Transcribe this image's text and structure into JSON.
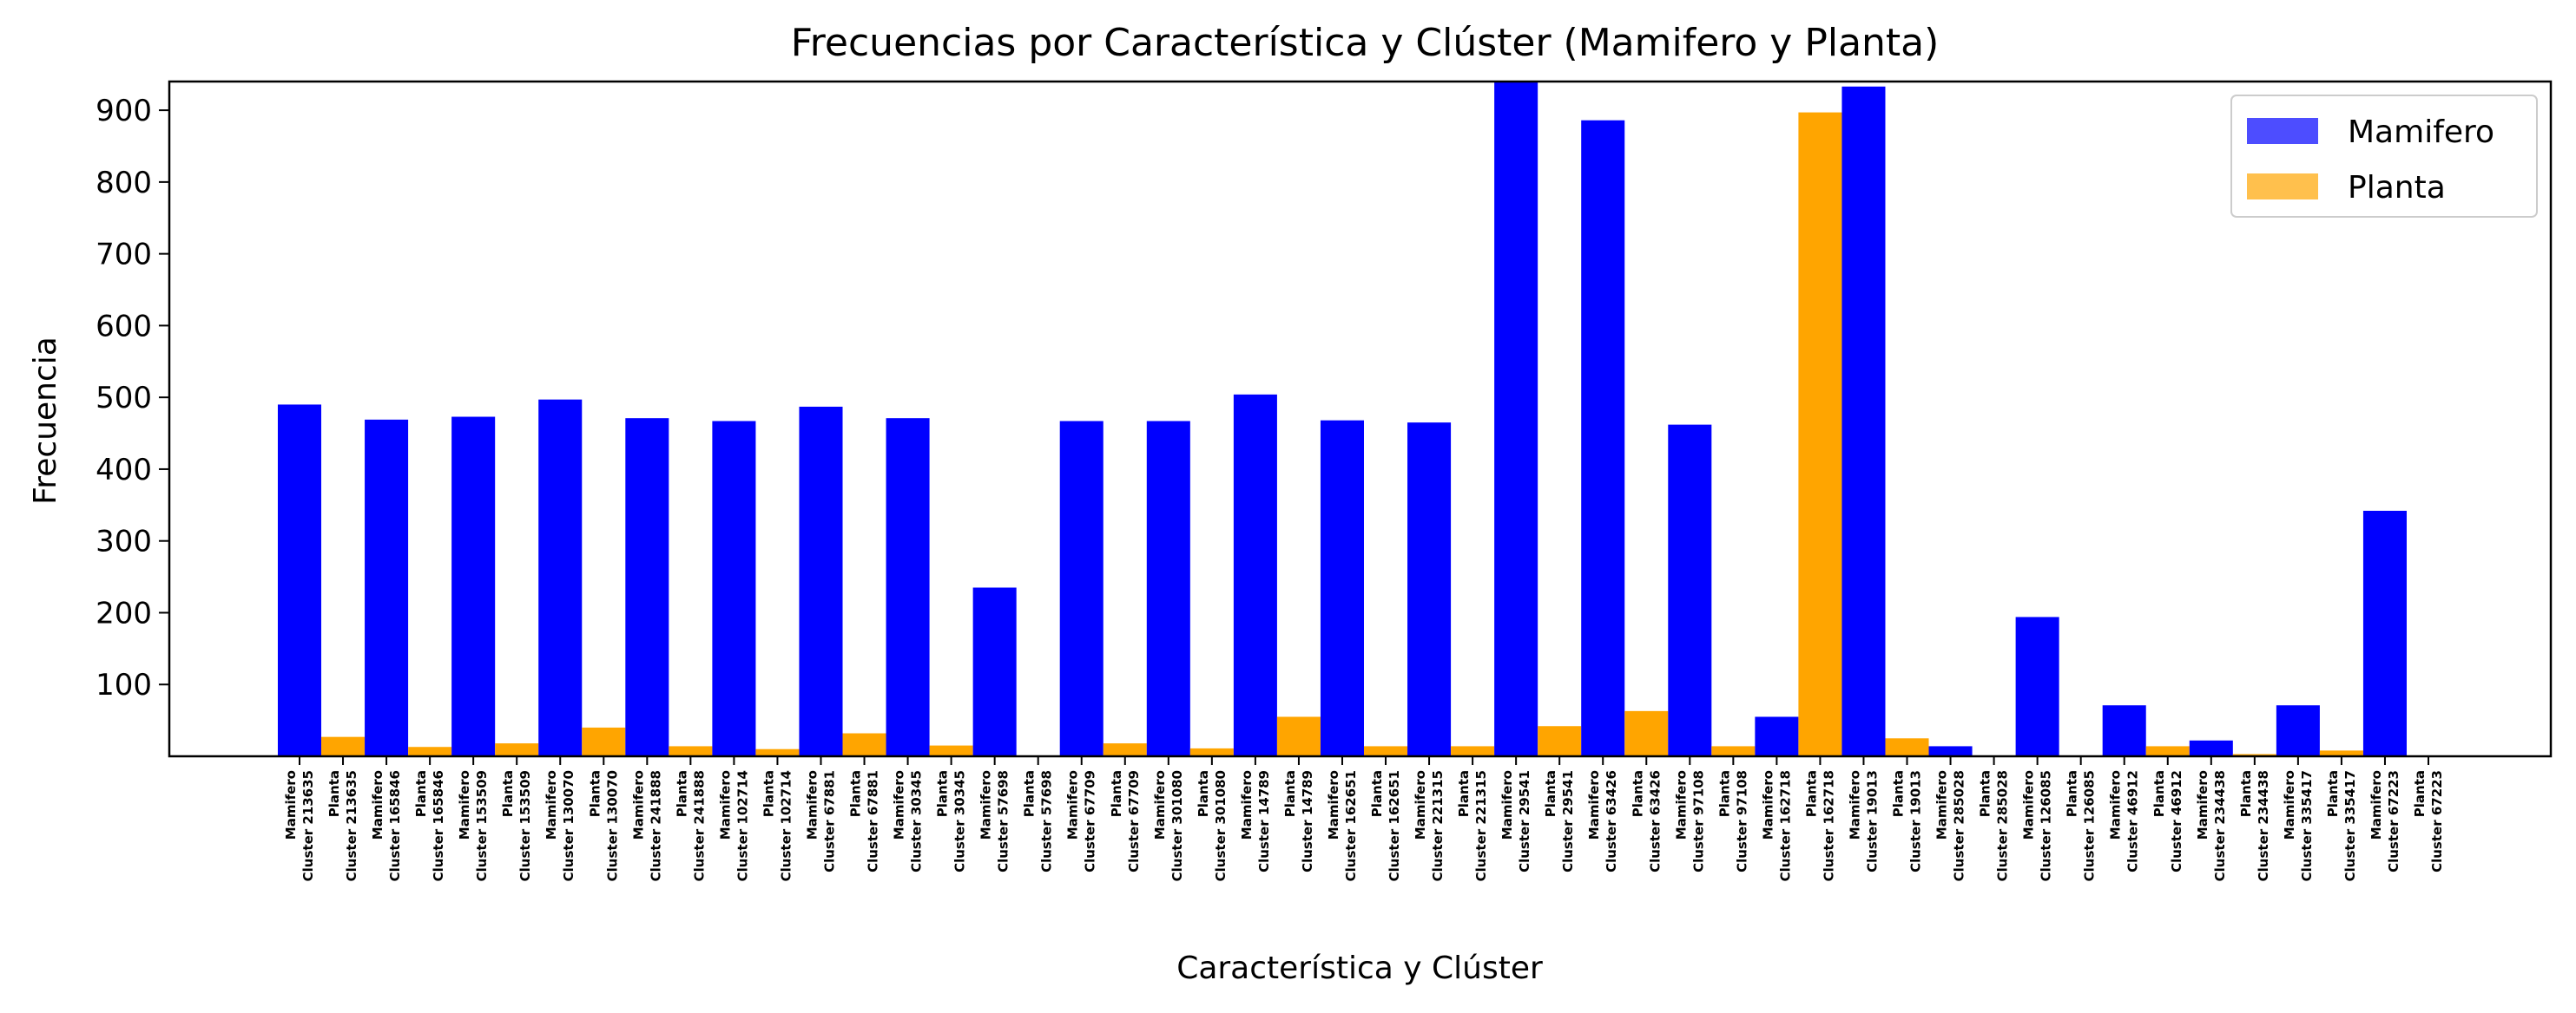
{
  "chart_data": {
    "type": "bar",
    "title": "Frecuencias por Característica y Clúster (Mamifero y Planta)",
    "xlabel": "Característica y Clúster",
    "ylabel": "Frecuencia",
    "ylim": [
      0,
      940
    ],
    "yticks": [
      100,
      200,
      300,
      400,
      500,
      600,
      700,
      800,
      900
    ],
    "grid": false,
    "legend_position": "top-right",
    "series": [
      {
        "name": "Mamifero",
        "color": "#0000ff",
        "legend_color": "#4d4dff"
      },
      {
        "name": "Planta",
        "color": "#ffa500",
        "legend_color": "#ffc04d"
      }
    ],
    "categories": [
      {
        "series": "Mamifero",
        "label": "Mamifero\nCluster 213635",
        "value": 490
      },
      {
        "series": "Planta",
        "label": "Planta\nCluster 213635",
        "value": 27
      },
      {
        "series": "Mamifero",
        "label": "Mamifero\nCluster 165846",
        "value": 469
      },
      {
        "series": "Planta",
        "label": "Planta\nCluster 165846",
        "value": 13
      },
      {
        "series": "Mamifero",
        "label": "Mamifero\nCluster 153509",
        "value": 473
      },
      {
        "series": "Planta",
        "label": "Planta\nCluster 153509",
        "value": 18
      },
      {
        "series": "Mamifero",
        "label": "Mamifero\nCluster 130070",
        "value": 497
      },
      {
        "series": "Planta",
        "label": "Planta\nCluster 130070",
        "value": 40
      },
      {
        "series": "Mamifero",
        "label": "Mamifero\nCluster 241888",
        "value": 471
      },
      {
        "series": "Planta",
        "label": "Planta\nCluster 241888",
        "value": 14
      },
      {
        "series": "Mamifero",
        "label": "Mamifero\nCluster 102714",
        "value": 467
      },
      {
        "series": "Planta",
        "label": "Planta\nCluster 102714",
        "value": 10
      },
      {
        "series": "Mamifero",
        "label": "Mamifero\nCluster 67881",
        "value": 487
      },
      {
        "series": "Planta",
        "label": "Planta\nCluster 67881",
        "value": 32
      },
      {
        "series": "Mamifero",
        "label": "Mamifero\nCluster 30345",
        "value": 471
      },
      {
        "series": "Planta",
        "label": "Planta\nCluster 30345",
        "value": 15
      },
      {
        "series": "Mamifero",
        "label": "Mamifero\nCluster 57698",
        "value": 235
      },
      {
        "series": "Planta",
        "label": "Planta\nCluster 57698",
        "value": 1
      },
      {
        "series": "Mamifero",
        "label": "Mamifero\nCluster 67709",
        "value": 467
      },
      {
        "series": "Planta",
        "label": "Planta\nCluster 67709",
        "value": 18
      },
      {
        "series": "Mamifero",
        "label": "Mamifero\nCluster 301080",
        "value": 467
      },
      {
        "series": "Planta",
        "label": "Planta\nCluster 301080",
        "value": 11
      },
      {
        "series": "Mamifero",
        "label": "Mamifero\nCluster 14789",
        "value": 504
      },
      {
        "series": "Planta",
        "label": "Planta\nCluster 14789",
        "value": 55
      },
      {
        "series": "Mamifero",
        "label": "Mamifero\nCluster 162651",
        "value": 468
      },
      {
        "series": "Planta",
        "label": "Planta\nCluster 162651",
        "value": 14
      },
      {
        "series": "Mamifero",
        "label": "Mamifero\nCluster 221315",
        "value": 465
      },
      {
        "series": "Planta",
        "label": "Planta\nCluster 221315",
        "value": 14
      },
      {
        "series": "Mamifero",
        "label": "Mamifero\nCluster 29541",
        "value": 940
      },
      {
        "series": "Planta",
        "label": "Planta\nCluster 29541",
        "value": 42
      },
      {
        "series": "Mamifero",
        "label": "Mamifero\nCluster 63426",
        "value": 886
      },
      {
        "series": "Planta",
        "label": "Planta\nCluster 63426",
        "value": 63
      },
      {
        "series": "Mamifero",
        "label": "Mamifero\nCluster 97108",
        "value": 462
      },
      {
        "series": "Planta",
        "label": "Planta\nCluster 97108",
        "value": 14
      },
      {
        "series": "Mamifero",
        "label": "Mamifero\nCluster 162718",
        "value": 55
      },
      {
        "series": "Planta",
        "label": "Planta\nCluster 162718",
        "value": 897
      },
      {
        "series": "Mamifero",
        "label": "Mamifero\nCluster 19013",
        "value": 933
      },
      {
        "series": "Planta",
        "label": "Planta\nCluster 19013",
        "value": 25
      },
      {
        "series": "Mamifero",
        "label": "Mamifero\nCluster 285028",
        "value": 14
      },
      {
        "series": "Planta",
        "label": "Planta\nCluster 285028",
        "value": 1
      },
      {
        "series": "Mamifero",
        "label": "Mamifero\nCluster 126085",
        "value": 194
      },
      {
        "series": "Planta",
        "label": "Planta\nCluster 126085",
        "value": 1
      },
      {
        "series": "Mamifero",
        "label": "Mamifero\nCluster 46912",
        "value": 71
      },
      {
        "series": "Planta",
        "label": "Planta\nCluster 46912",
        "value": 14
      },
      {
        "series": "Mamifero",
        "label": "Mamifero\nCluster 234438",
        "value": 22
      },
      {
        "series": "Planta",
        "label": "Planta\nCluster 234438",
        "value": 3
      },
      {
        "series": "Mamifero",
        "label": "Mamifero\nCluster 335417",
        "value": 71
      },
      {
        "series": "Planta",
        "label": "Planta\nCluster 335417",
        "value": 8
      },
      {
        "series": "Mamifero",
        "label": "Mamifero\nCluster 67223",
        "value": 342
      },
      {
        "series": "Planta",
        "label": "Planta\nCluster 67223",
        "value": 1
      }
    ]
  }
}
